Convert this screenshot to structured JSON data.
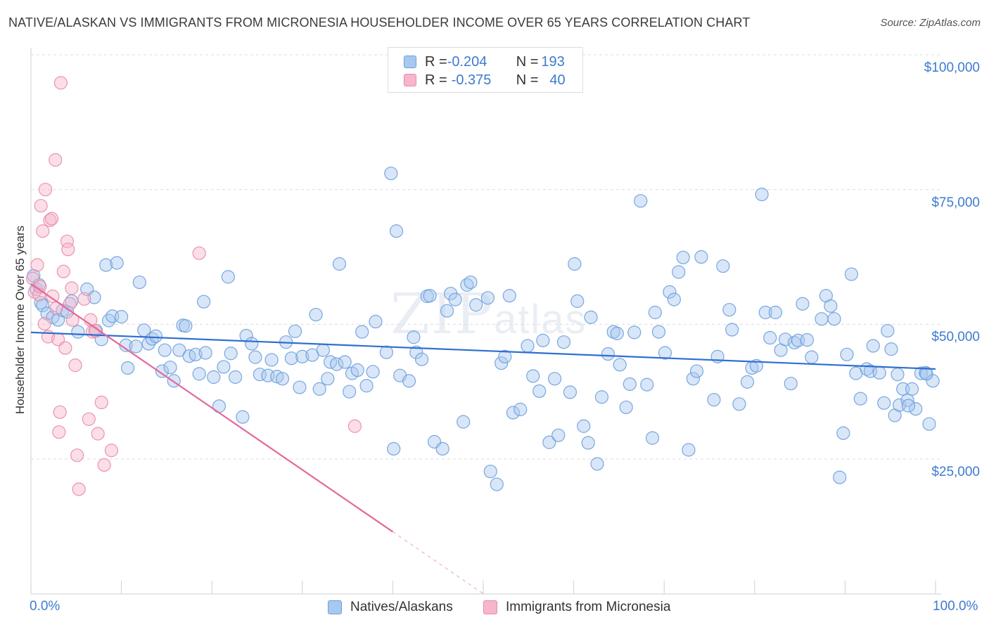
{
  "title": "NATIVE/ALASKAN VS IMMIGRANTS FROM MICRONESIA HOUSEHOLDER INCOME OVER 65 YEARS CORRELATION CHART",
  "source": "Source: ZipAtlas.com",
  "watermark": {
    "big": "ZIP",
    "small": "atlas"
  },
  "stats": [
    {
      "r_label": "R = ",
      "r_value": "-0.204",
      "n_label": "N = ",
      "n_value": "193",
      "color": "#a8c8f0",
      "border": "#6a9fdc"
    },
    {
      "r_label": "R = ",
      "r_value": "-0.375",
      "n_label": "N = ",
      "n_value": "40",
      "color": "#f7b6ca",
      "border": "#e88aa8"
    }
  ],
  "legend": [
    {
      "label": "Natives/Alaskans",
      "color": "#a8c8f0",
      "border": "#6a9fdc"
    },
    {
      "label": "Immigrants from Micronesia",
      "color": "#f7b6ca",
      "border": "#e88aa8"
    }
  ],
  "chart_data": {
    "type": "scatter",
    "title": "NATIVE/ALASKAN VS IMMIGRANTS FROM MICRONESIA HOUSEHOLDER INCOME OVER 65 YEARS CORRELATION CHART",
    "xlabel": "",
    "ylabel": "Householder Income Over 65 years",
    "xlim": [
      0,
      100
    ],
    "ylim": [
      0,
      105000
    ],
    "x_tick_labels": [
      "0.0%",
      "100.0%"
    ],
    "y_ticks": [
      25000,
      50000,
      75000,
      100000
    ],
    "y_tick_labels": [
      "$25,000",
      "$50,000",
      "$75,000",
      "$100,000"
    ],
    "grid": true,
    "legend_position": "bottom",
    "series": [
      {
        "name": "Natives/Alaskans",
        "color": "#6a9fdc",
        "fill": "#a8c8f0",
        "trend": {
          "x": [
            0,
            100
          ],
          "y": [
            48500,
            41700
          ],
          "solid_to": 100
        },
        "points": [
          [
            0.3,
            59000
          ],
          [
            0.6,
            56500
          ],
          [
            0.9,
            57300
          ],
          [
            1.1,
            54000
          ],
          [
            1.3,
            53500
          ],
          [
            1.8,
            52000
          ],
          [
            2.4,
            51300
          ],
          [
            3.0,
            50800
          ],
          [
            3.5,
            52600
          ],
          [
            4.0,
            52300
          ],
          [
            4.5,
            54300
          ],
          [
            5.2,
            48600
          ],
          [
            6.2,
            56500
          ],
          [
            7.0,
            55000
          ],
          [
            7.2,
            48800
          ],
          [
            7.8,
            47200
          ],
          [
            8.3,
            61000
          ],
          [
            8.6,
            50700
          ],
          [
            9.0,
            51500
          ],
          [
            9.5,
            61400
          ],
          [
            10.0,
            51400
          ],
          [
            10.5,
            46100
          ],
          [
            10.7,
            41900
          ],
          [
            11.6,
            45900
          ],
          [
            12.0,
            57800
          ],
          [
            12.5,
            48900
          ],
          [
            13.0,
            46400
          ],
          [
            13.4,
            47300
          ],
          [
            13.8,
            47800
          ],
          [
            14.5,
            41300
          ],
          [
            14.8,
            45200
          ],
          [
            15.4,
            42000
          ],
          [
            15.8,
            39500
          ],
          [
            16.4,
            45200
          ],
          [
            16.8,
            49800
          ],
          [
            17.1,
            49700
          ],
          [
            17.5,
            44100
          ],
          [
            18.2,
            44400
          ],
          [
            18.6,
            40800
          ],
          [
            19.1,
            54200
          ],
          [
            19.3,
            44700
          ],
          [
            20.2,
            40200
          ],
          [
            20.8,
            34800
          ],
          [
            21.3,
            42100
          ],
          [
            21.8,
            58800
          ],
          [
            22.1,
            44600
          ],
          [
            22.6,
            40200
          ],
          [
            23.4,
            32800
          ],
          [
            23.8,
            47900
          ],
          [
            24.4,
            46400
          ],
          [
            24.8,
            43900
          ],
          [
            25.3,
            40700
          ],
          [
            26.2,
            40500
          ],
          [
            26.6,
            43400
          ],
          [
            27.2,
            40300
          ],
          [
            27.8,
            39900
          ],
          [
            28.2,
            46700
          ],
          [
            28.8,
            43700
          ],
          [
            29.2,
            48700
          ],
          [
            29.7,
            38300
          ],
          [
            30.0,
            44000
          ],
          [
            31.1,
            44300
          ],
          [
            31.5,
            51800
          ],
          [
            31.9,
            38000
          ],
          [
            32.3,
            45200
          ],
          [
            32.8,
            39900
          ],
          [
            33.1,
            43000
          ],
          [
            33.8,
            42600
          ],
          [
            34.1,
            61200
          ],
          [
            34.7,
            43000
          ],
          [
            35.2,
            37500
          ],
          [
            35.5,
            40900
          ],
          [
            36.1,
            41500
          ],
          [
            36.6,
            48600
          ],
          [
            37.1,
            38600
          ],
          [
            37.8,
            41200
          ],
          [
            38.1,
            50500
          ],
          [
            39.3,
            44800
          ],
          [
            39.8,
            78000
          ],
          [
            40.1,
            26900
          ],
          [
            40.4,
            67300
          ],
          [
            40.8,
            40500
          ],
          [
            41.8,
            39500
          ],
          [
            42.3,
            47600
          ],
          [
            42.6,
            44800
          ],
          [
            43.2,
            43500
          ],
          [
            43.8,
            55200
          ],
          [
            44.1,
            55300
          ],
          [
            44.6,
            28200
          ],
          [
            45.5,
            26900
          ],
          [
            46.0,
            52500
          ],
          [
            46.4,
            55700
          ],
          [
            46.9,
            54600
          ],
          [
            47.8,
            31900
          ],
          [
            48.2,
            57300
          ],
          [
            48.6,
            57800
          ],
          [
            49.2,
            53600
          ],
          [
            50.5,
            54900
          ],
          [
            50.8,
            22700
          ],
          [
            51.5,
            20300
          ],
          [
            52.0,
            42800
          ],
          [
            52.4,
            44000
          ],
          [
            52.9,
            55300
          ],
          [
            53.3,
            33600
          ],
          [
            54.1,
            34200
          ],
          [
            54.9,
            46000
          ],
          [
            55.5,
            40400
          ],
          [
            56.2,
            37600
          ],
          [
            56.6,
            47000
          ],
          [
            57.3,
            28100
          ],
          [
            57.9,
            39900
          ],
          [
            58.3,
            29400
          ],
          [
            58.9,
            46700
          ],
          [
            59.6,
            37400
          ],
          [
            60.1,
            61200
          ],
          [
            60.4,
            54300
          ],
          [
            61.1,
            31100
          ],
          [
            61.6,
            28000
          ],
          [
            61.9,
            51300
          ],
          [
            62.6,
            24100
          ],
          [
            63.1,
            36500
          ],
          [
            63.8,
            44500
          ],
          [
            64.4,
            48600
          ],
          [
            64.8,
            48300
          ],
          [
            65.1,
            42500
          ],
          [
            65.8,
            34600
          ],
          [
            66.2,
            38900
          ],
          [
            66.7,
            48500
          ],
          [
            67.4,
            72900
          ],
          [
            68.1,
            38800
          ],
          [
            68.7,
            28900
          ],
          [
            69.0,
            52200
          ],
          [
            69.4,
            48600
          ],
          [
            70.1,
            44700
          ],
          [
            70.6,
            56000
          ],
          [
            71.1,
            54600
          ],
          [
            71.6,
            59700
          ],
          [
            72.1,
            62400
          ],
          [
            72.7,
            26700
          ],
          [
            73.2,
            39900
          ],
          [
            73.6,
            41300
          ],
          [
            74.1,
            62500
          ],
          [
            75.5,
            36000
          ],
          [
            75.9,
            44000
          ],
          [
            76.5,
            60800
          ],
          [
            77.2,
            52700
          ],
          [
            77.5,
            49000
          ],
          [
            78.3,
            35200
          ],
          [
            79.2,
            39300
          ],
          [
            79.7,
            41900
          ],
          [
            80.2,
            42300
          ],
          [
            80.8,
            74100
          ],
          [
            81.2,
            52200
          ],
          [
            81.7,
            47500
          ],
          [
            82.3,
            52200
          ],
          [
            82.9,
            45200
          ],
          [
            83.4,
            47200
          ],
          [
            84.0,
            39000
          ],
          [
            84.4,
            46600
          ],
          [
            84.8,
            47000
          ],
          [
            85.3,
            53800
          ],
          [
            85.8,
            47100
          ],
          [
            86.3,
            43900
          ],
          [
            87.4,
            51000
          ],
          [
            87.9,
            55300
          ],
          [
            88.4,
            53400
          ],
          [
            88.8,
            51000
          ],
          [
            89.4,
            21600
          ],
          [
            89.8,
            29800
          ],
          [
            90.2,
            44400
          ],
          [
            90.7,
            59300
          ],
          [
            91.2,
            40900
          ],
          [
            91.7,
            36200
          ],
          [
            92.4,
            41700
          ],
          [
            92.8,
            41300
          ],
          [
            93.1,
            46000
          ],
          [
            93.8,
            41000
          ],
          [
            94.3,
            35400
          ],
          [
            94.7,
            48800
          ],
          [
            95.1,
            45400
          ],
          [
            95.5,
            33100
          ],
          [
            96.0,
            35000
          ],
          [
            96.4,
            38000
          ],
          [
            96.9,
            35900
          ],
          [
            97.4,
            38000
          ],
          [
            97.8,
            34300
          ],
          [
            98.4,
            40900
          ],
          [
            98.9,
            41000
          ],
          [
            99.3,
            31500
          ],
          [
            99.7,
            39500
          ],
          [
            99.0,
            40800
          ],
          [
            97.0,
            34900
          ],
          [
            95.8,
            40700
          ]
        ]
      },
      {
        "name": "Immigrants from Micronesia",
        "color": "#e88aa8",
        "fill": "#f7b6ca",
        "trend": {
          "x": [
            0,
            50
          ],
          "y": [
            57500,
            0
          ],
          "solid_to": 40
        },
        "points": [
          [
            0.2,
            58500
          ],
          [
            0.4,
            56000
          ],
          [
            0.7,
            61000
          ],
          [
            0.9,
            55500
          ],
          [
            1.1,
            72000
          ],
          [
            1.3,
            67300
          ],
          [
            1.5,
            50100
          ],
          [
            1.6,
            75000
          ],
          [
            1.9,
            47700
          ],
          [
            2.1,
            69300
          ],
          [
            2.3,
            69600
          ],
          [
            2.4,
            55200
          ],
          [
            2.7,
            80500
          ],
          [
            2.8,
            53000
          ],
          [
            3.0,
            47200
          ],
          [
            3.2,
            33700
          ],
          [
            3.1,
            30000
          ],
          [
            3.3,
            94800
          ],
          [
            3.6,
            59800
          ],
          [
            3.8,
            45600
          ],
          [
            4.0,
            65400
          ],
          [
            4.1,
            63900
          ],
          [
            4.3,
            53800
          ],
          [
            4.6,
            50800
          ],
          [
            4.5,
            56700
          ],
          [
            4.9,
            42400
          ],
          [
            5.1,
            25700
          ],
          [
            5.3,
            19400
          ],
          [
            5.9,
            54700
          ],
          [
            6.4,
            32400
          ],
          [
            6.6,
            50800
          ],
          [
            6.8,
            48600
          ],
          [
            7.1,
            48800
          ],
          [
            7.4,
            29700
          ],
          [
            7.8,
            35500
          ],
          [
            8.1,
            23900
          ],
          [
            8.9,
            26600
          ],
          [
            18.6,
            63200
          ],
          [
            35.8,
            31100
          ],
          [
            1.0,
            57000
          ]
        ]
      }
    ]
  }
}
